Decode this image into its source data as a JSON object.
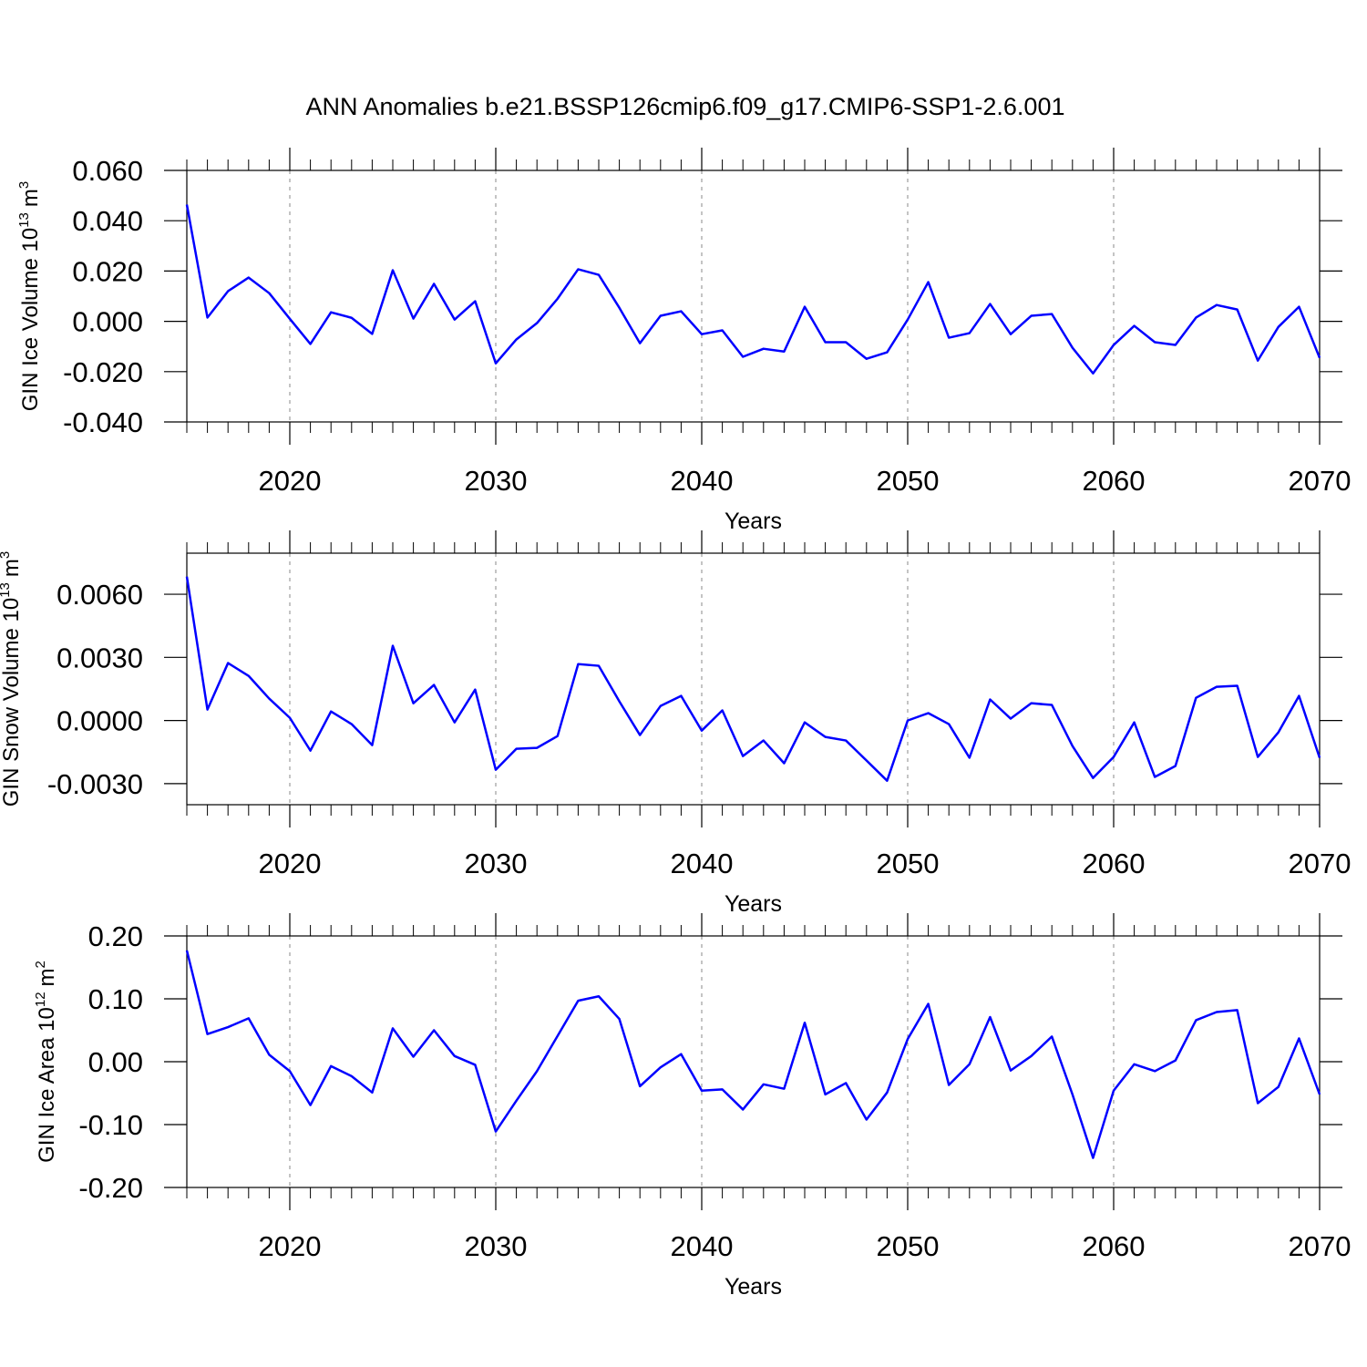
{
  "chart_data": [
    {
      "type": "line",
      "title": "ANN Anomalies b.e21.BSSP126cmip6.f09_g17.CMIP6-SSP1-2.6.001",
      "xlabel": "Years",
      "ylabel": [
        "GIN Ice Volume 10",
        "13",
        "m",
        "3"
      ],
      "xlim": [
        2015,
        2070
      ],
      "xticks": [
        2020,
        2030,
        2040,
        2050,
        2060,
        2070
      ],
      "xgrid": true,
      "ylim": [
        -0.04,
        0.06
      ],
      "yticks": [
        {
          "value": -0.04,
          "label": "-0.040"
        },
        {
          "value": -0.02,
          "label": "-0.020"
        },
        {
          "value": 0,
          "label": "0.000"
        },
        {
          "value": 0.02,
          "label": "0.020"
        },
        {
          "value": 0.04,
          "label": "0.040"
        },
        {
          "value": 0.06,
          "label": "0.060"
        }
      ],
      "x": [
        2015,
        2016,
        2017,
        2018,
        2019,
        2020,
        2021,
        2022,
        2023,
        2024,
        2025,
        2026,
        2027,
        2028,
        2029,
        2030,
        2031,
        2032,
        2033,
        2034,
        2035,
        2036,
        2037,
        2038,
        2039,
        2040,
        2041,
        2042,
        2043,
        2044,
        2045,
        2046,
        2047,
        2048,
        2049,
        2050,
        2051,
        2052,
        2053,
        2054,
        2055,
        2056,
        2057,
        2058,
        2059,
        2060,
        2061,
        2062,
        2063,
        2064,
        2065,
        2066,
        2067,
        2068,
        2069,
        2070
      ],
      "color": "#0000ff",
      "values": [
        0.0464,
        0.0015,
        0.012,
        0.0174,
        0.0112,
        0.001,
        -0.009,
        0.0036,
        0.0014,
        -0.005,
        0.0203,
        0.0011,
        0.0149,
        0.0007,
        0.008,
        -0.0167,
        -0.0072,
        -0.0007,
        0.009,
        0.0207,
        0.0185,
        0.0054,
        -0.0087,
        0.0022,
        0.004,
        -0.0051,
        -0.0036,
        -0.0141,
        -0.0109,
        -0.012,
        0.0058,
        -0.0083,
        -0.0083,
        -0.0149,
        -0.0123,
        0.0007,
        0.0156,
        -0.0065,
        -0.0047,
        0.0069,
        -0.0051,
        0.0022,
        0.0029,
        -0.0105,
        -0.0207,
        -0.0094,
        -0.0018,
        -0.0083,
        -0.0094,
        0.0015,
        0.0065,
        0.0047,
        -0.0156,
        -0.0022,
        0.0058,
        -0.0145
      ]
    },
    {
      "type": "line",
      "xlabel": "Years",
      "ylabel": [
        "GIN Snow Volume 10",
        "13",
        "m",
        "3"
      ],
      "xlim": [
        2015,
        2070
      ],
      "xticks": [
        2020,
        2030,
        2040,
        2050,
        2060,
        2070
      ],
      "xgrid": true,
      "ylim": [
        -0.004,
        0.00795
      ],
      "yticks": [
        {
          "value": -0.003,
          "label": "-0.0030"
        },
        {
          "value": 0,
          "label": "0.0000"
        },
        {
          "value": 0.003,
          "label": "0.0030"
        },
        {
          "value": 0.006,
          "label": "0.0060"
        }
      ],
      "x": [
        2015,
        2016,
        2017,
        2018,
        2019,
        2020,
        2021,
        2022,
        2023,
        2024,
        2025,
        2026,
        2027,
        2028,
        2029,
        2030,
        2031,
        2032,
        2033,
        2034,
        2035,
        2036,
        2037,
        2038,
        2039,
        2040,
        2041,
        2042,
        2043,
        2044,
        2045,
        2046,
        2047,
        2048,
        2049,
        2050,
        2051,
        2052,
        2053,
        2054,
        2055,
        2056,
        2057,
        2058,
        2059,
        2060,
        2061,
        2062,
        2063,
        2064,
        2065,
        2066,
        2067,
        2068,
        2069,
        2070
      ],
      "color": "#0000ff",
      "values": [
        0.00684,
        0.00052,
        0.00273,
        0.00212,
        0.00104,
        0.00013,
        -0.00143,
        0.00043,
        -0.00017,
        -0.00117,
        0.00355,
        0.00082,
        0.00169,
        -9e-05,
        0.00147,
        -0.00234,
        -0.00134,
        -0.0013,
        -0.00074,
        0.00268,
        0.0026,
        0.00091,
        -0.00069,
        0.00069,
        0.00117,
        -0.00048,
        0.00048,
        -0.00169,
        -0.00095,
        -0.00203,
        -9e-05,
        -0.00078,
        -0.00095,
        -0.0019,
        -0.00286,
        0,
        0.00035,
        -0.00017,
        -0.00177,
        0.001,
        9e-05,
        0.00082,
        0.00074,
        -0.00121,
        -0.00273,
        -0.00173,
        -9e-05,
        -0.00268,
        -0.00216,
        0.00108,
        0.0016,
        0.00165,
        -0.00173,
        -0.00056,
        0.00117,
        -0.00177
      ]
    },
    {
      "type": "line",
      "xlabel": "Years",
      "ylabel": [
        "GIN Ice Area 10",
        "12",
        "m",
        "2"
      ],
      "xlim": [
        2015,
        2070
      ],
      "xticks": [
        2020,
        2030,
        2040,
        2050,
        2060,
        2070
      ],
      "xgrid": true,
      "ylim": [
        -0.2,
        0.2
      ],
      "yticks": [
        {
          "value": -0.2,
          "label": "-0.20"
        },
        {
          "value": -0.1,
          "label": "-0.10"
        },
        {
          "value": 0,
          "label": "0.00"
        },
        {
          "value": 0.1,
          "label": "0.10"
        },
        {
          "value": 0.2,
          "label": "0.20"
        }
      ],
      "x": [
        2015,
        2016,
        2017,
        2018,
        2019,
        2020,
        2021,
        2022,
        2023,
        2024,
        2025,
        2026,
        2027,
        2028,
        2029,
        2030,
        2031,
        2032,
        2033,
        2034,
        2035,
        2036,
        2037,
        2038,
        2039,
        2040,
        2041,
        2042,
        2043,
        2044,
        2045,
        2046,
        2047,
        2048,
        2049,
        2050,
        2051,
        2052,
        2053,
        2054,
        2055,
        2056,
        2057,
        2058,
        2059,
        2060,
        2061,
        2062,
        2063,
        2064,
        2065,
        2066,
        2067,
        2068,
        2069,
        2070
      ],
      "color": "#0000ff",
      "values": [
        0.177,
        0.044,
        0.055,
        0.069,
        0.011,
        -0.015,
        -0.069,
        -0.007,
        -0.023,
        -0.049,
        0.053,
        0.008,
        0.05,
        0.009,
        -0.005,
        -0.111,
        -0.062,
        -0.015,
        0.041,
        0.097,
        0.104,
        0.068,
        -0.039,
        -0.009,
        0.012,
        -0.046,
        -0.044,
        -0.076,
        -0.036,
        -0.043,
        0.062,
        -0.052,
        -0.034,
        -0.092,
        -0.049,
        0.036,
        0.092,
        -0.037,
        -0.004,
        0.071,
        -0.014,
        0.009,
        0.04,
        -0.052,
        -0.153,
        -0.046,
        -0.004,
        -0.015,
        0.002,
        0.066,
        0.079,
        0.082,
        -0.066,
        -0.04,
        0.037,
        -0.052
      ]
    }
  ]
}
